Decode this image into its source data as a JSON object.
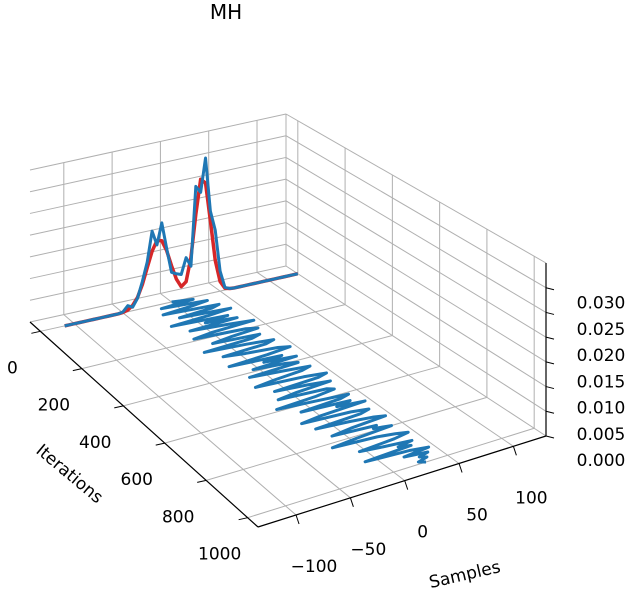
{
  "chart_data": {
    "type": "line",
    "projection": "3d",
    "title": "MH",
    "xlabel": "Samples",
    "ylabel": "Iterations",
    "zlabel": "",
    "xlim": [
      -135,
      130
    ],
    "ylim": [
      -50,
      1050
    ],
    "zlim": [
      0,
      0.035
    ],
    "x_ticks": [
      "−100",
      "−50",
      "0",
      "50",
      "100"
    ],
    "x_tick_values": [
      -100,
      -50,
      0,
      50,
      100
    ],
    "y_ticks": [
      "0",
      "200",
      "400",
      "600",
      "800",
      "1000"
    ],
    "y_tick_values": [
      0,
      200,
      400,
      600,
      800,
      1000
    ],
    "z_ticks": [
      "0.000",
      "0.005",
      "0.010",
      "0.015",
      "0.020",
      "0.025",
      "0.030"
    ],
    "z_tick_values": [
      0,
      0.005,
      0.01,
      0.015,
      0.02,
      0.025,
      0.03
    ],
    "grid": true,
    "colors": {
      "density": "#d62728",
      "estimate": "#1f77b4",
      "trace": "#1f77b4",
      "grid": "#b0b0b0"
    },
    "density_curve": {
      "iteration": 0,
      "x": [
        -110,
        -105,
        -100,
        -95,
        -90,
        -85,
        -80,
        -75,
        -70,
        -65,
        -60,
        -55,
        -50,
        -45,
        -40,
        -35,
        -30,
        -25,
        -20,
        -15,
        -10,
        -5,
        0,
        5,
        10,
        15,
        20,
        25,
        30,
        35,
        40,
        45,
        50,
        55,
        60,
        65,
        70,
        75,
        80,
        85,
        90,
        95,
        100,
        105,
        110,
        115,
        120,
        125,
        130
      ],
      "z": [
        0,
        0,
        0,
        0,
        0,
        0,
        0,
        0,
        0,
        0,
        0,
        0,
        0.0001,
        0.0004,
        0.0012,
        0.0028,
        0.0055,
        0.0091,
        0.0126,
        0.0148,
        0.0145,
        0.012,
        0.0083,
        0.005,
        0.003,
        0.0039,
        0.0092,
        0.0188,
        0.0266,
        0.0255,
        0.0166,
        0.0073,
        0.0022,
        0.0004,
        0.0001,
        0,
        0,
        0,
        0,
        0,
        0,
        0,
        0,
        0,
        0,
        0,
        0,
        0,
        0
      ]
    },
    "sample_estimate": {
      "iteration": 0,
      "x": [
        -110,
        -105,
        -100,
        -95,
        -90,
        -85,
        -80,
        -75,
        -70,
        -65,
        -60,
        -55,
        -50,
        -45,
        -40,
        -35,
        -30,
        -25,
        -20,
        -15,
        -10,
        -5,
        0,
        5,
        10,
        15,
        20,
        25,
        30,
        35,
        40,
        45,
        50,
        55,
        60,
        65,
        70,
        75,
        80,
        85,
        90,
        95,
        100,
        105,
        110,
        115,
        120,
        125,
        130
      ],
      "z": [
        0,
        0,
        0,
        0,
        0,
        0,
        0,
        0,
        0,
        0,
        0,
        0,
        0.0002,
        0.0014,
        0.0008,
        0.0026,
        0.0062,
        0.0104,
        0.0172,
        0.0138,
        0.0186,
        0.0125,
        0.0068,
        0.0062,
        0.0058,
        0.0094,
        0.0072,
        0.0252,
        0.0236,
        0.0312,
        0.0188,
        0.0142,
        0.0046,
        0.0006,
        0.0001,
        0,
        0,
        0,
        0,
        0,
        0,
        0,
        0,
        0,
        0,
        0,
        0,
        0,
        0
      ]
    },
    "trace": {
      "z": 0,
      "iteration_step": 10,
      "samples": [
        0,
        20,
        -15,
        30,
        10,
        -20,
        35,
        25,
        -10,
        40,
        15,
        -25,
        30,
        5,
        35,
        -15,
        20,
        45,
        0,
        -20,
        30,
        40,
        10,
        -10,
        35,
        25,
        -25,
        15,
        40,
        30,
        -15,
        5,
        35,
        45,
        20,
        -20,
        30,
        10,
        40,
        -5,
        25,
        35,
        -15,
        15,
        40,
        30,
        0,
        -20,
        25,
        45,
        35,
        -10,
        20,
        40,
        5,
        -15,
        30,
        35,
        15,
        -25,
        10,
        40,
        30,
        -10,
        35,
        20,
        45,
        0,
        -20,
        25,
        40,
        30,
        -15,
        15,
        35,
        45,
        10,
        -10,
        30,
        25,
        40,
        5,
        -20,
        20,
        35,
        45,
        30,
        -5,
        15,
        40,
        25,
        35,
        -10,
        30,
        45,
        20,
        40,
        30,
        35,
        25,
        30
      ]
    }
  }
}
